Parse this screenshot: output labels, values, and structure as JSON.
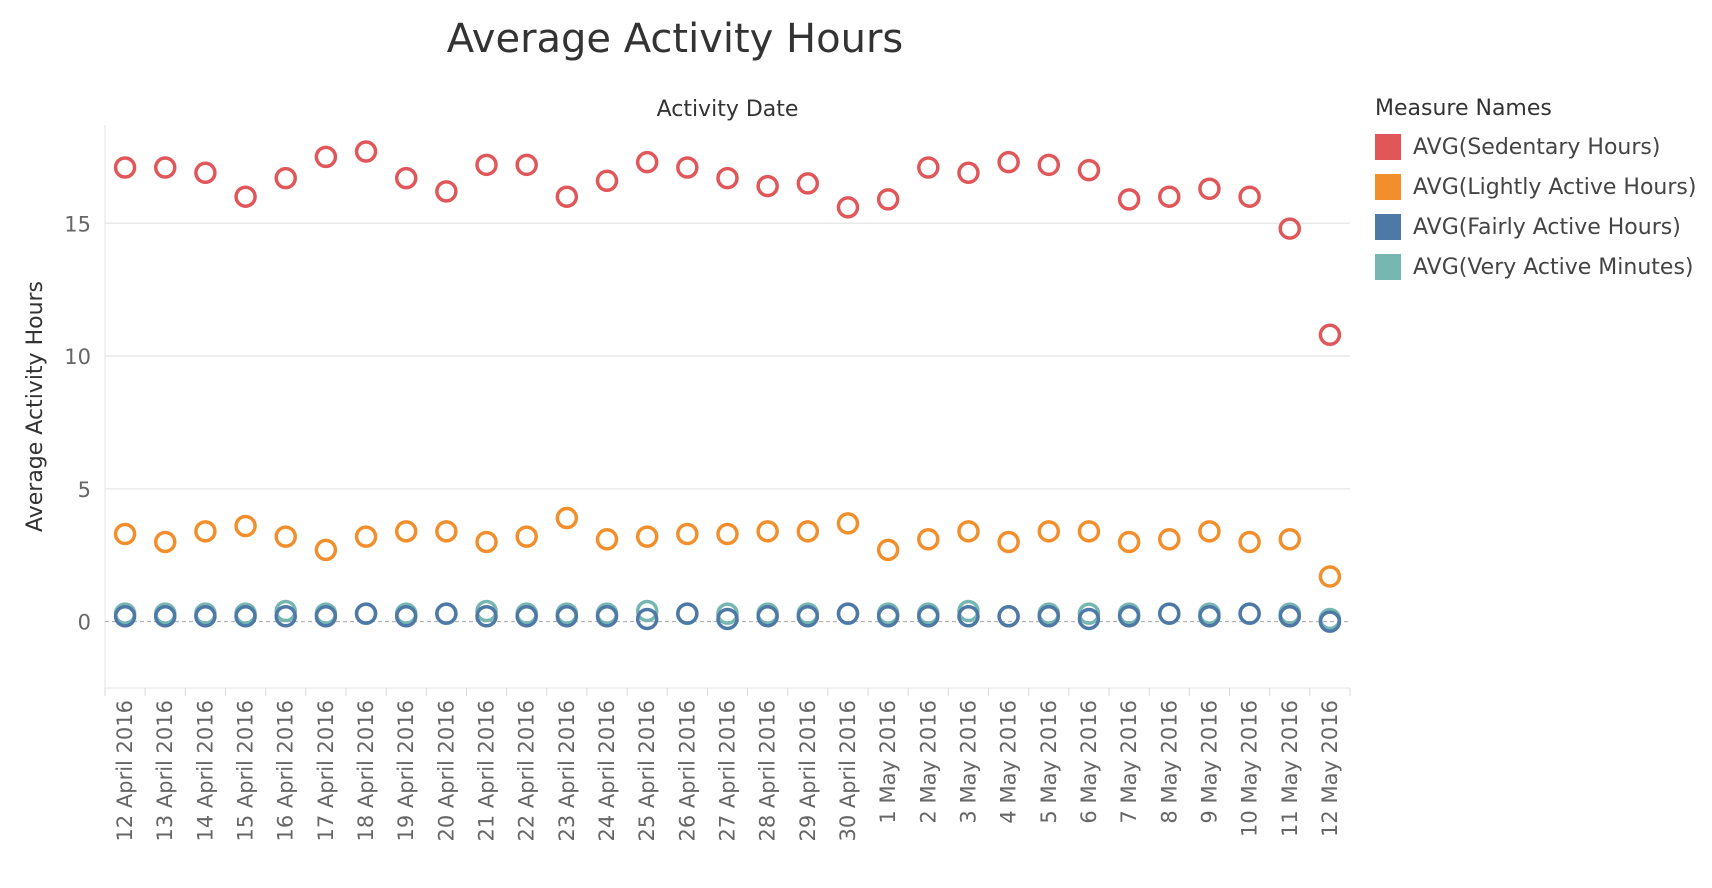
{
  "chart_data": {
    "type": "scatter",
    "title": "Average Activity Hours",
    "xlabel": "Activity Date",
    "ylabel": "Average Activity Hours",
    "ylim": [
      -2.5,
      18.7
    ],
    "yticks": [
      0,
      5,
      10,
      15
    ],
    "grid": true,
    "legend_title": "Measure Names",
    "legend_position": "right",
    "categories": [
      "12 April 2016",
      "13 April 2016",
      "14 April 2016",
      "15 April 2016",
      "16 April 2016",
      "17 April 2016",
      "18 April 2016",
      "19 April 2016",
      "20 April 2016",
      "21 April 2016",
      "22 April 2016",
      "23 April 2016",
      "24 April 2016",
      "25 April 2016",
      "26 April 2016",
      "27 April 2016",
      "28 April 2016",
      "29 April 2016",
      "30 April 2016",
      "1 May 2016",
      "2 May 2016",
      "3 May 2016",
      "4 May 2016",
      "5 May 2016",
      "6 May 2016",
      "7 May 2016",
      "8 May 2016",
      "9 May 2016",
      "10 May 2016",
      "11 May 2016",
      "12 May 2016"
    ],
    "series": [
      {
        "name": "AVG(Sedentary Hours)",
        "color": "#e15759",
        "values": [
          17.1,
          17.1,
          16.9,
          16.0,
          16.7,
          17.5,
          17.7,
          16.7,
          16.2,
          17.2,
          17.2,
          16.0,
          16.6,
          17.3,
          17.1,
          16.7,
          16.4,
          16.5,
          15.6,
          15.9,
          17.1,
          16.9,
          17.3,
          17.2,
          17.0,
          15.9,
          16.0,
          16.3,
          16.0,
          14.8,
          10.8
        ]
      },
      {
        "name": "AVG(Lightly Active Hours)",
        "color": "#f28e2b",
        "values": [
          3.3,
          3.0,
          3.4,
          3.6,
          3.2,
          2.7,
          3.2,
          3.4,
          3.4,
          3.0,
          3.2,
          3.9,
          3.1,
          3.2,
          3.3,
          3.3,
          3.4,
          3.4,
          3.7,
          2.7,
          3.1,
          3.4,
          3.0,
          3.4,
          3.4,
          3.0,
          3.1,
          3.4,
          3.0,
          3.1,
          1.7
        ]
      },
      {
        "name": "AVG(Fairly Active Hours)",
        "color": "#4e79a7",
        "values": [
          0.2,
          0.2,
          0.2,
          0.2,
          0.2,
          0.2,
          0.3,
          0.2,
          0.3,
          0.2,
          0.2,
          0.2,
          0.2,
          0.1,
          0.3,
          0.1,
          0.2,
          0.2,
          0.3,
          0.2,
          0.2,
          0.2,
          0.2,
          0.2,
          0.1,
          0.2,
          0.3,
          0.2,
          0.3,
          0.2,
          0.0
        ]
      },
      {
        "name": "AVG(Very Active Minutes)",
        "color": "#76b7b2",
        "values": [
          0.3,
          0.3,
          0.3,
          0.3,
          0.4,
          0.3,
          0.3,
          0.3,
          0.3,
          0.4,
          0.3,
          0.3,
          0.3,
          0.4,
          0.3,
          0.3,
          0.3,
          0.3,
          0.3,
          0.3,
          0.3,
          0.4,
          0.2,
          0.3,
          0.3,
          0.3,
          0.3,
          0.3,
          0.3,
          0.3,
          0.1
        ]
      }
    ]
  }
}
